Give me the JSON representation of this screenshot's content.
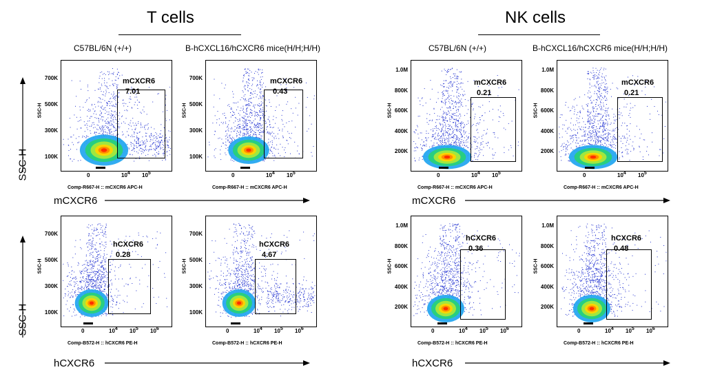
{
  "titles": {
    "t_cells": "T cells",
    "nk_cells": "NK cells"
  },
  "conditions": {
    "wt": "C57BL/6N (+/+)",
    "humanized": "B-hCXCL16/hCXCR6 mice(H/H;H/H)"
  },
  "axis_names": {
    "ssc": "SSC-H",
    "mcxcr6": "mCXCR6",
    "hcxcr6": "hCXCR6"
  },
  "plot_y_label": "SSC-H",
  "x_axis_labels": {
    "apc": "Comp-R667-H :: mCXCR6 APC-H",
    "pe": "Comp-B572-H :: hCXCR6 PE-H"
  },
  "y_ticks": {
    "t": [
      "700K",
      "500K",
      "300K",
      "100K"
    ],
    "nk": [
      "1.0M",
      "800K",
      "600K",
      "400K",
      "200K"
    ]
  },
  "x_ticks": {
    "apc": [
      "0",
      "10",
      "4",
      "10",
      "5"
    ],
    "pe": [
      "0",
      "10",
      "4",
      "10",
      "5",
      "10",
      "6"
    ]
  },
  "plots": [
    {
      "cell": "T cells",
      "row": "mCXCR6",
      "sample": "C57BL/6N (+/+)",
      "gate_name": "mCXCR6",
      "percent": "7.01"
    },
    {
      "cell": "T cells",
      "row": "mCXCR6",
      "sample": "B-hCXCL16/hCXCR6 mice(H/H;H/H)",
      "gate_name": "mCXCR6",
      "percent": "0.43"
    },
    {
      "cell": "NK cells",
      "row": "mCXCR6",
      "sample": "C57BL/6N (+/+)",
      "gate_name": "mCXCR6",
      "percent": "0.21"
    },
    {
      "cell": "NK cells",
      "row": "mCXCR6",
      "sample": "B-hCXCL16/hCXCR6 mice(H/H;H/H)",
      "gate_name": "mCXCR6",
      "percent": "0.21"
    },
    {
      "cell": "T cells",
      "row": "hCXCR6",
      "sample": "C57BL/6N (+/+)",
      "gate_name": "hCXCR6",
      "percent": "0.28"
    },
    {
      "cell": "T cells",
      "row": "hCXCR6",
      "sample": "B-hCXCL16/hCXCR6 mice(H/H;H/H)",
      "gate_name": "hCXCR6",
      "percent": "4.67"
    },
    {
      "cell": "NK cells",
      "row": "hCXCR6",
      "sample": "C57BL/6N (+/+)",
      "gate_name": "hCXCR6",
      "percent": "0.36"
    },
    {
      "cell": "NK cells",
      "row": "hCXCR6",
      "sample": "B-hCXCL16/hCXCR6 mice(H/H;H/H)",
      "gate_name": "hCXCR6",
      "percent": "0.48"
    }
  ],
  "colors": {
    "dots": "#1f2fd0",
    "core": "#ff2a00",
    "mid": "#ffd400",
    "ring": "#28d07a"
  }
}
